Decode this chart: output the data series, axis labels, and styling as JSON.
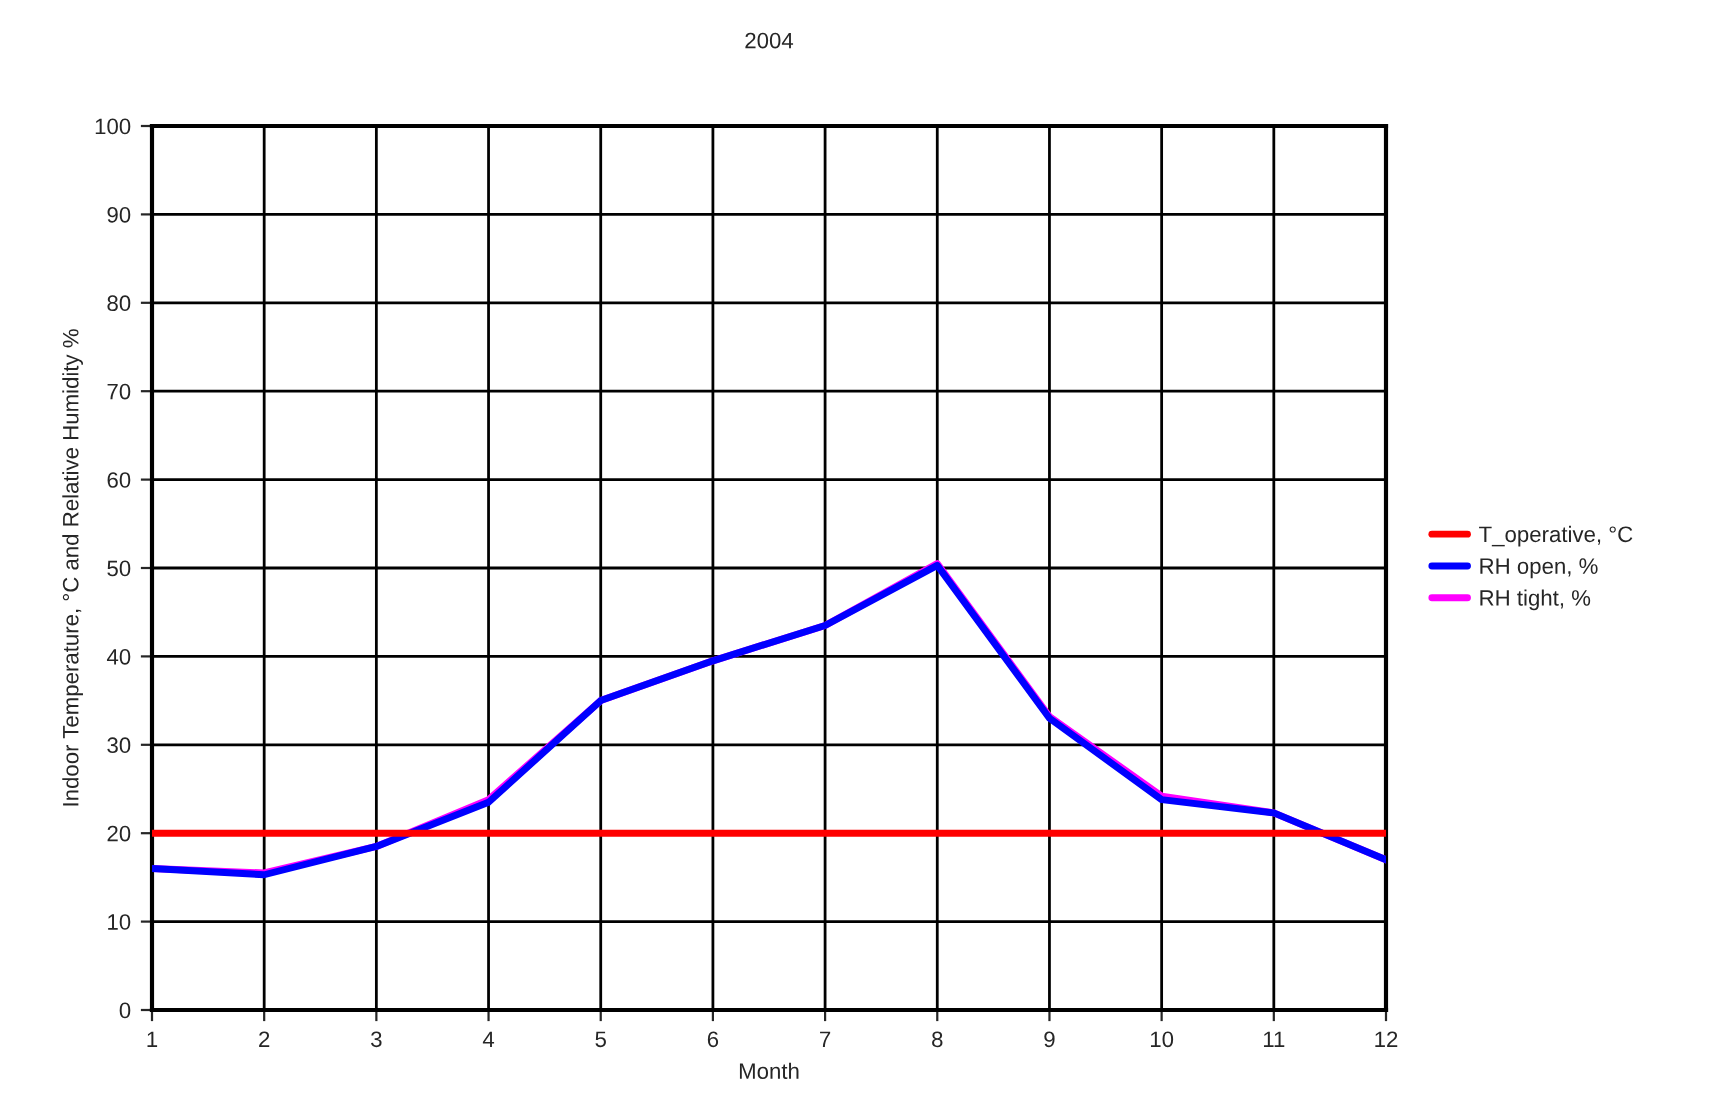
{
  "chart_data": {
    "type": "line",
    "title": "2004",
    "xlabel": "Month",
    "ylabel": "Indoor Temperature, °C and Relative Humidity %",
    "x": [
      1,
      2,
      3,
      4,
      5,
      6,
      7,
      8,
      9,
      10,
      11,
      12
    ],
    "series": [
      {
        "name": "T_operative, °C",
        "color": "#ff0000",
        "values": [
          20,
          20,
          20,
          20,
          20,
          20,
          20,
          20,
          20,
          20,
          20,
          20
        ]
      },
      {
        "name": "RH open, %",
        "color": "#0000ff",
        "values": [
          16,
          15.3,
          18.5,
          23.5,
          35,
          39.5,
          43.5,
          50.3,
          33,
          23.8,
          22.3,
          17
        ]
      },
      {
        "name": "RH tight, %",
        "color": "#ff00ff",
        "values": [
          16,
          15.5,
          18.5,
          23.8,
          35,
          39.5,
          43.5,
          50.5,
          33.2,
          24.2,
          22.3,
          17
        ]
      }
    ],
    "xlim": [
      1,
      12
    ],
    "xticks": [
      1,
      2,
      3,
      4,
      5,
      6,
      7,
      8,
      9,
      10,
      11,
      12
    ],
    "ylim": [
      0,
      100
    ],
    "yticks": [
      0,
      10,
      20,
      30,
      40,
      50,
      60,
      70,
      80,
      90,
      100
    ],
    "grid": true,
    "legend": "right",
    "marker": "none",
    "line_style": "solid"
  }
}
